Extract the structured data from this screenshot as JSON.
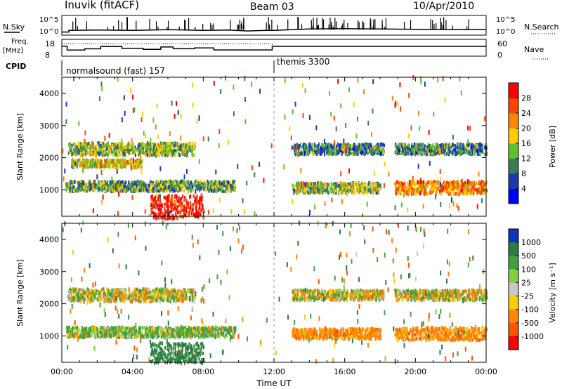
{
  "header": {
    "station": "Inuvik (fitACF)",
    "beam": "Beam 03",
    "date": "10/Apr/2010"
  },
  "chart_data": [
    {
      "type": "line",
      "panel": "noise",
      "left_label": "N.Sky",
      "right_label": "N.Search",
      "left_ticks": [
        "10^5",
        "10^0"
      ],
      "right_ticks": [
        "10^5",
        "10^0"
      ],
      "x_range_hours": [
        0,
        24
      ],
      "series": [
        {
          "values_note": "",
          "x": [
            0.0,
            0.4,
            0.4,
            2.0,
            4.0,
            6.0,
            8.0,
            9.5,
            10.5,
            11.5,
            12.0,
            14.0,
            16.0,
            18.0,
            20.0,
            22.0,
            24.0
          ],
          "y": [
            0.5,
            0.5,
            1.0,
            1.1,
            1.0,
            1.2,
            1.0,
            1.1,
            0.8,
            1.0,
            1.0,
            1.4,
            1.5,
            1.4,
            1.3,
            1.2,
            1.2
          ]
        }
      ]
    },
    {
      "type": "line",
      "panel": "frequency",
      "left_label": "Freq.",
      "left_unit": "[MHz]",
      "right_label": "Nave",
      "left_ticks": [
        "18",
        "8"
      ],
      "right_ticks": [
        "60",
        "0"
      ],
      "x_range_hours": [
        0,
        24
      ],
      "series": [
        {
          "x": [
            0.0,
            0.3,
            0.3,
            1.3,
            1.3,
            2.2,
            2.2,
            3.4,
            3.4,
            4.6,
            4.6,
            5.6,
            5.6,
            6.3,
            6.3,
            7.5,
            7.5,
            8.6,
            8.6,
            11.9,
            11.9,
            24.0
          ],
          "y": [
            14.0,
            14.0,
            11.5,
            11.5,
            12.3,
            12.3,
            13.8,
            13.8,
            12.6,
            12.6,
            12.0,
            12.0,
            13.5,
            13.5,
            12.4,
            12.4,
            12.9,
            12.9,
            11.6,
            11.6,
            13.9,
            13.9
          ]
        },
        {
          "x": [
            0.0,
            11.9,
            11.9,
            24.0
          ],
          "y": [
            15.5,
            15.5,
            13.9,
            13.9
          ]
        }
      ]
    },
    {
      "type": "table",
      "panel": "cpid",
      "label": "CPID",
      "programs": [
        {
          "name": "normalsound (fast) 157",
          "start_hour": 0,
          "end_hour": 11.9
        },
        {
          "name": "themis 3300",
          "start_hour": 11.9,
          "end_hour": 24
        }
      ]
    },
    {
      "type": "heatmap",
      "panel": "power",
      "ylabel": "Slant Range [km]",
      "ylim": [
        180,
        4500
      ],
      "y_ticks": [
        1000,
        2000,
        3000,
        4000
      ],
      "xlim": [
        0,
        24
      ],
      "colorbar_label": "Power [dB]",
      "colorbar_ticks": [
        4,
        8,
        12,
        16,
        20,
        24,
        28
      ],
      "colorbar_colors": [
        "#0000ff",
        "#1a3ab0",
        "#3a7a5a",
        "#60c030",
        "#ffcc00",
        "#ff8800",
        "#ff4400",
        "#ff0000"
      ],
      "scatter_bands": [
        {
          "start_hour": 0.2,
          "end_hour": 9.8,
          "range_km": 1100,
          "width_km": 200,
          "value": 12
        },
        {
          "start_hour": 0.3,
          "end_hour": 7.5,
          "range_km": 2250,
          "width_km": 250,
          "value": 14
        },
        {
          "start_hour": 0.5,
          "end_hour": 4.5,
          "range_km": 1800,
          "width_km": 150,
          "value": 18
        },
        {
          "start_hour": 5.0,
          "end_hour": 8.0,
          "range_km": 450,
          "width_km": 450,
          "value": 30
        },
        {
          "start_hour": 13.0,
          "end_hour": 18.0,
          "range_km": 1050,
          "width_km": 200,
          "value": 14
        },
        {
          "start_hour": 13.0,
          "end_hour": 18.2,
          "range_km": 2250,
          "width_km": 200,
          "value": 10
        },
        {
          "start_hour": 18.8,
          "end_hour": 24.0,
          "range_km": 1050,
          "width_km": 250,
          "value": 22
        },
        {
          "start_hour": 18.8,
          "end_hour": 24.0,
          "range_km": 2250,
          "width_km": 200,
          "value": 10
        }
      ]
    },
    {
      "type": "heatmap",
      "panel": "velocity",
      "xlabel": "Time UT",
      "ylabel": "Slant Range [km]",
      "ylim": [
        180,
        4500
      ],
      "y_ticks": [
        1000,
        2000,
        3000,
        4000
      ],
      "xlim": [
        0,
        24
      ],
      "x_tick_labels": [
        "00:00",
        "04:00",
        "08:00",
        "12:00",
        "16:00",
        "20:00",
        "00:00"
      ],
      "colorbar_label": "Velocity [m s-1]",
      "colorbar_ticks": [
        1000,
        500,
        100,
        25,
        -25,
        -100,
        -500,
        -1000
      ],
      "colorbar_colors": [
        "#1030c0",
        "#2a7a4a",
        "#40a040",
        "#80d040",
        "#c8c8c8",
        "#ffcc00",
        "#ff8800",
        "#ff5500",
        "#ff0000"
      ],
      "scatter_bands": [
        {
          "start_hour": 0.2,
          "end_hour": 9.8,
          "range_km": 1100,
          "width_km": 200,
          "value": 150
        },
        {
          "start_hour": 0.3,
          "end_hour": 7.5,
          "range_km": 2250,
          "width_km": 250,
          "value": 0
        },
        {
          "start_hour": 5.0,
          "end_hour": 8.0,
          "range_km": 450,
          "width_km": 400,
          "value": 600
        },
        {
          "start_hour": 13.0,
          "end_hour": 18.0,
          "range_km": 1050,
          "width_km": 200,
          "value": -300
        },
        {
          "start_hour": 13.0,
          "end_hour": 18.2,
          "range_km": 2250,
          "width_km": 200,
          "value": 0
        },
        {
          "start_hour": 18.8,
          "end_hour": 24.0,
          "range_km": 1050,
          "width_km": 250,
          "value": -300
        },
        {
          "start_hour": 18.8,
          "end_hour": 24.0,
          "range_km": 2250,
          "width_km": 200,
          "value": 0
        }
      ]
    }
  ],
  "labels": {
    "power_y": "Slant Range [km]",
    "velocity_y": "Slant Range [km]",
    "time_x": "Time UT",
    "cpid": "CPID",
    "freq": "Freq.",
    "freq_unit": "[MHz]",
    "nave": "Nave",
    "nsky": "N.Sky",
    "nsearch": "N.Search",
    "power_cb": "Power [dB]",
    "velocity_cb": "Velocity [m s⁻¹]",
    "cpid_a": "normalsound (fast) 157",
    "cpid_b": "themis 3300",
    "noise_tick_top": "10^5",
    "noise_tick_bot": "10^0",
    "freq_tick_top": "18",
    "freq_tick_bot": "8",
    "nave_tick_top": "60",
    "nave_tick_bot": "0"
  }
}
